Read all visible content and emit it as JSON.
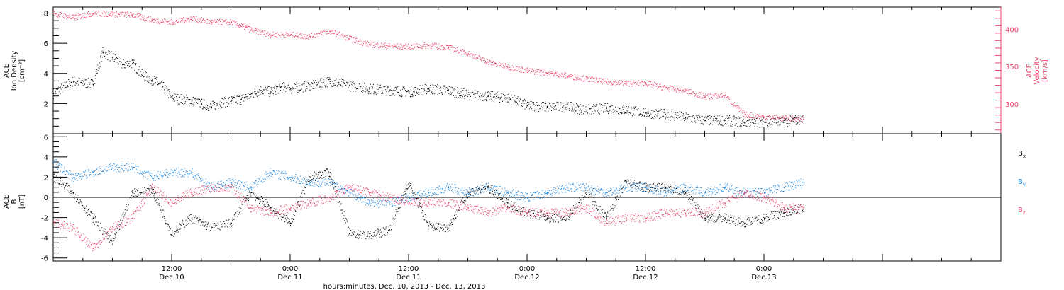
{
  "chart_data": [
    {
      "type": "scatter",
      "panel": "top",
      "ylabel_lines": [
        "ACE",
        "Ion Density",
        "[cm⁻³]"
      ],
      "ylabel_right_lines": [
        "ACE",
        "Velocity",
        "[km/s]"
      ],
      "ylim": [
        0,
        8.4
      ],
      "ylim_right": [
        260,
        430
      ],
      "yticks": [
        2,
        4,
        6,
        8
      ],
      "yticks_right": [
        300,
        350,
        400
      ],
      "series": [
        {
          "name": "",
          "axis": "left",
          "color": "#000000",
          "x_hours": [
            0,
            2,
            4,
            5,
            6,
            7,
            8,
            9,
            10,
            11,
            12,
            13,
            14,
            15,
            16,
            17,
            18,
            19,
            20,
            21,
            22,
            23,
            24,
            26,
            28,
            30,
            32,
            34,
            36,
            38,
            40,
            42,
            44,
            46,
            48,
            50,
            52,
            54,
            56,
            58,
            60,
            62,
            64,
            66,
            68,
            70,
            72,
            74,
            76
          ],
          "values": [
            2.7,
            3.5,
            3.3,
            5.4,
            5.1,
            4.6,
            4.7,
            3.9,
            3.6,
            3.2,
            2.4,
            2.3,
            2.2,
            2.0,
            1.8,
            2.1,
            2.2,
            2.3,
            2.6,
            2.9,
            2.8,
            3.1,
            3.0,
            3.2,
            3.5,
            3.2,
            3.0,
            2.9,
            2.8,
            3.0,
            2.9,
            2.6,
            2.5,
            2.4,
            1.9,
            1.8,
            1.8,
            1.6,
            1.7,
            1.6,
            1.4,
            1.3,
            1.1,
            0.9,
            0.9,
            0.8,
            0.8,
            0.8,
            1.0
          ]
        },
        {
          "name": "",
          "axis": "right",
          "color": "#e8426b",
          "x_hours": [
            0,
            2,
            4,
            6,
            8,
            10,
            12,
            14,
            16,
            18,
            20,
            22,
            24,
            26,
            28,
            30,
            32,
            34,
            36,
            38,
            40,
            42,
            44,
            46,
            48,
            50,
            52,
            54,
            56,
            58,
            60,
            62,
            64,
            66,
            68,
            70,
            72,
            74,
            76
          ],
          "values": [
            422,
            416,
            422,
            421,
            420,
            413,
            410,
            415,
            410,
            410,
            400,
            393,
            393,
            391,
            398,
            388,
            380,
            378,
            377,
            379,
            376,
            368,
            357,
            350,
            345,
            342,
            338,
            334,
            330,
            328,
            328,
            322,
            318,
            310,
            312,
            286,
            283,
            281,
            280
          ]
        }
      ]
    },
    {
      "type": "scatter",
      "panel": "bottom",
      "ylabel_lines": [
        "ACE",
        "B",
        "[nT]"
      ],
      "ylim": [
        -6.3,
        6.3
      ],
      "yticks": [
        -6,
        -4,
        -2,
        0,
        2,
        4,
        6
      ],
      "zero_line": true,
      "legend_placement": "right",
      "series": [
        {
          "name": "Bx",
          "legend_main": "B",
          "legend_sub": "x",
          "color": "#000000",
          "x_hours": [
            0,
            2,
            4,
            6,
            8,
            10,
            12,
            14,
            16,
            18,
            20,
            22,
            24,
            26,
            28,
            30,
            32,
            34,
            36,
            38,
            40,
            42,
            44,
            46,
            48,
            50,
            52,
            54,
            56,
            58,
            60,
            62,
            64,
            66,
            68,
            70,
            72,
            74,
            76
          ],
          "values": [
            2.0,
            0.5,
            -2.0,
            -4.5,
            0.5,
            0.8,
            -3.5,
            -2.0,
            -3.0,
            -2.5,
            0.5,
            -1.0,
            -2.5,
            2.0,
            2.5,
            -3.5,
            -3.8,
            -3.2,
            1.5,
            -2.8,
            -3.0,
            0.5,
            1.0,
            -0.5,
            -1.5,
            -2.0,
            -2.0,
            0.5,
            -2.0,
            1.5,
            1.0,
            1.0,
            0.5,
            -2.0,
            -2.0,
            -2.5,
            -2.0,
            -1.5,
            -1.0
          ]
        },
        {
          "name": "By",
          "legend_main": "B",
          "legend_sub": "y",
          "color": "#1a86e0",
          "x_hours": [
            0,
            2,
            4,
            6,
            8,
            10,
            12,
            14,
            16,
            18,
            20,
            22,
            24,
            26,
            28,
            30,
            32,
            34,
            36,
            38,
            40,
            42,
            44,
            46,
            48,
            50,
            52,
            54,
            56,
            58,
            60,
            62,
            64,
            66,
            68,
            70,
            72,
            74,
            76
          ],
          "values": [
            3.5,
            2.0,
            2.5,
            3.0,
            3.0,
            2.0,
            2.5,
            2.5,
            1.0,
            1.5,
            1.0,
            2.5,
            2.0,
            1.5,
            1.5,
            0.5,
            -0.5,
            -0.5,
            0.0,
            0.5,
            1.0,
            0.5,
            1.0,
            0.5,
            0.0,
            0.5,
            1.0,
            1.0,
            0.5,
            1.0,
            1.0,
            0.5,
            1.0,
            0.5,
            1.0,
            0.5,
            0.5,
            1.0,
            1.5
          ]
        },
        {
          "name": "Bz",
          "legend_main": "B",
          "legend_sub": "z",
          "color": "#e8426b",
          "x_hours": [
            0,
            2,
            4,
            6,
            8,
            10,
            12,
            14,
            16,
            18,
            20,
            22,
            24,
            26,
            28,
            30,
            32,
            34,
            36,
            38,
            40,
            42,
            44,
            46,
            48,
            50,
            52,
            54,
            56,
            58,
            60,
            62,
            64,
            66,
            68,
            70,
            72,
            74,
            76
          ],
          "values": [
            -2.5,
            -3.0,
            -5.0,
            -3.0,
            -2.0,
            1.0,
            -0.5,
            0.5,
            1.0,
            1.0,
            -1.0,
            -1.5,
            -1.0,
            -0.5,
            0.0,
            1.0,
            0.5,
            0.0,
            -0.5,
            -0.5,
            -0.5,
            -1.0,
            -1.5,
            -1.0,
            -1.5,
            -1.5,
            -1.5,
            -1.0,
            -2.5,
            -2.0,
            -2.0,
            -1.5,
            -1.5,
            -1.5,
            -0.5,
            0.5,
            0.0,
            -1.0,
            -1.0
          ]
        }
      ]
    }
  ],
  "x_axis": {
    "range_hours": [
      0,
      96
    ],
    "ticks": [
      {
        "hours": 12,
        "time": "12:00",
        "date": "Dec.10"
      },
      {
        "hours": 24,
        "time": "0:00",
        "date": "Dec.11"
      },
      {
        "hours": 36,
        "time": "12:00",
        "date": "Dec.11"
      },
      {
        "hours": 48,
        "time": "0:00",
        "date": "Dec.12"
      },
      {
        "hours": 60,
        "time": "12:00",
        "date": "Dec.12"
      },
      {
        "hours": 72,
        "time": "0:00",
        "date": "Dec.13"
      }
    ],
    "title": "hours:minutes, Dec. 10, 2013 - Dec. 13, 2013"
  }
}
